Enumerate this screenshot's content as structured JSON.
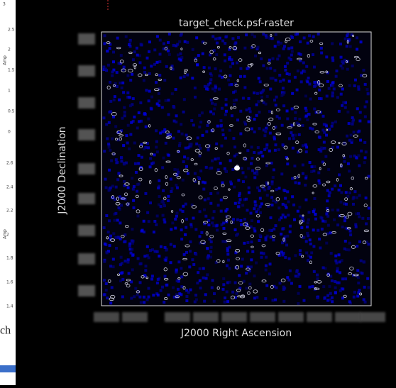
{
  "side_panel": {
    "top_label": "3",
    "amp_label_upper": "Amp",
    "amp_label_lower": "Amp",
    "upper_ticks": [
      "2.5",
      "2",
      "1.5",
      "1",
      "0.5",
      "0"
    ],
    "lower_ticks": [
      "2.6",
      "2.4",
      "2.2",
      "2",
      "1.8",
      "1.6",
      "1.4"
    ],
    "cut_text": "ch"
  },
  "viewer": {
    "title": "target_check.psf-raster",
    "x_label": "J2000 Right Ascension",
    "y_label": "J2000 Declination"
  }
}
